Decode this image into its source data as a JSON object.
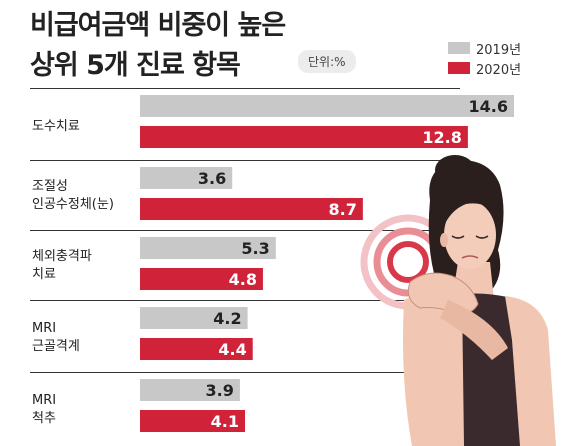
{
  "title_lines": [
    "비급여금액 비중이 높은",
    "상위 5개 진료 항목"
  ],
  "unit_label": "단위:%",
  "colors": {
    "y2019": "#c8c8c8",
    "y2020": "#d0233a"
  },
  "chart_data": {
    "type": "bar",
    "orientation": "horizontal",
    "categories": [
      "도수치료",
      "조절성\n인공수정체(눈)",
      "체외충격파\n치료",
      "MRI\n근골격계",
      "MRI\n척추"
    ],
    "series": [
      {
        "name": "2019년",
        "values": [
          14.6,
          3.6,
          5.3,
          4.2,
          3.9
        ]
      },
      {
        "name": "2020년",
        "values": [
          12.8,
          8.7,
          4.8,
          4.4,
          4.1
        ]
      }
    ],
    "xlim": [
      0,
      14.6
    ],
    "legend": "top-right",
    "grid": false
  }
}
